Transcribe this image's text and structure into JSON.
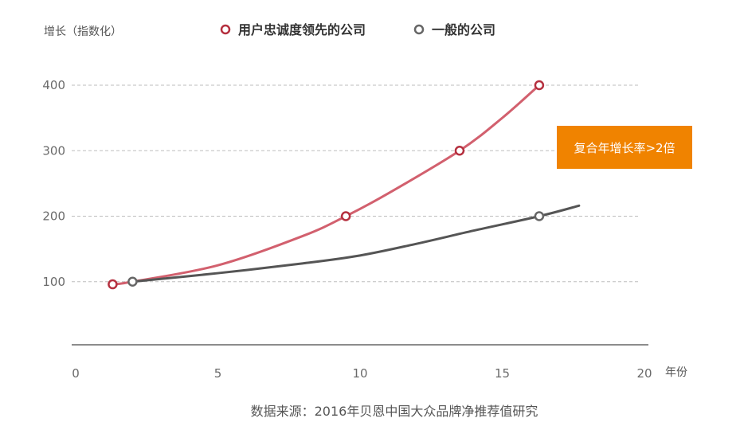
{
  "chart_data": {
    "type": "line",
    "ylabel": "增长（指数化）",
    "xlabel": "年份",
    "xlim": [
      0,
      20
    ],
    "ylim": [
      0,
      400
    ],
    "x_ticks": [
      "0",
      "5",
      "10",
      "15",
      "20"
    ],
    "y_ticks": [
      "100",
      "200",
      "300",
      "400"
    ],
    "grid": "horizontal dashed",
    "legend": "top",
    "series": [
      {
        "name": "用户忠诚度领先的公司",
        "color": "#d2606e",
        "marker_color": "#b5303f",
        "curve": [
          [
            1.3,
            96
          ],
          [
            2,
            100
          ],
          [
            5,
            125
          ],
          [
            8,
            170
          ],
          [
            9.5,
            200
          ],
          [
            11,
            235
          ],
          [
            13.5,
            300
          ],
          [
            15,
            350
          ],
          [
            16.3,
            400
          ]
        ],
        "markers": [
          [
            1.3,
            96
          ],
          [
            9.5,
            200
          ],
          [
            13.5,
            300
          ],
          [
            16.3,
            400
          ]
        ]
      },
      {
        "name": "一般的公司",
        "color": "#555555",
        "marker_color": "#666666",
        "curve": [
          [
            2,
            100
          ],
          [
            5,
            113
          ],
          [
            8,
            128
          ],
          [
            10,
            140
          ],
          [
            12,
            158
          ],
          [
            14,
            178
          ],
          [
            16.3,
            200
          ],
          [
            17.7,
            216
          ]
        ],
        "markers": [
          [
            2,
            100
          ],
          [
            16.3,
            200
          ]
        ]
      }
    ],
    "annotation": "复合年增长率>2倍",
    "annotation_color": "#f08300"
  },
  "source": "数据来源：2016年贝恩中国大众品牌净推荐值研究"
}
